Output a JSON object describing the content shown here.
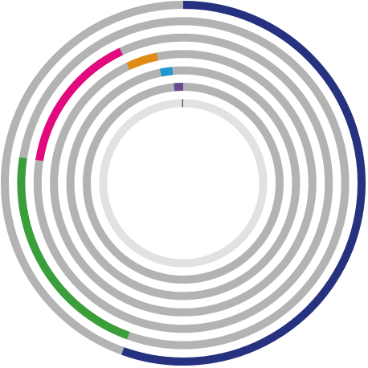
{
  "chart_data": {
    "type": "radial-bar",
    "start_angle_deg": 0,
    "direction": "clockwise",
    "track_color": "#b3b3b3",
    "inner_track_color": "#e2e2e2",
    "rings": [
      {
        "segments": [
          {
            "from": 0.0,
            "to": 0.555,
            "color": "#263280"
          }
        ]
      },
      {
        "segments": [
          {
            "from": 0.555,
            "to": 0.775,
            "color": "#3a9e3a"
          }
        ]
      },
      {
        "segments": [
          {
            "from": 0.775,
            "to": 0.93,
            "color": "#e0097e"
          }
        ]
      },
      {
        "segments": [
          {
            "from": 0.93,
            "to": 0.968,
            "color": "#e08b14"
          }
        ]
      },
      {
        "segments": [
          {
            "from": 0.968,
            "to": 0.985,
            "color": "#2497d0"
          }
        ]
      },
      {
        "segments": [
          {
            "from": 0.985,
            "to": 1.0,
            "color": "#6a4a8e"
          }
        ]
      },
      {
        "segments": [
          {
            "from": 0.998,
            "to": 1.0,
            "color": "#4d4d4d"
          }
        ]
      }
    ]
  }
}
